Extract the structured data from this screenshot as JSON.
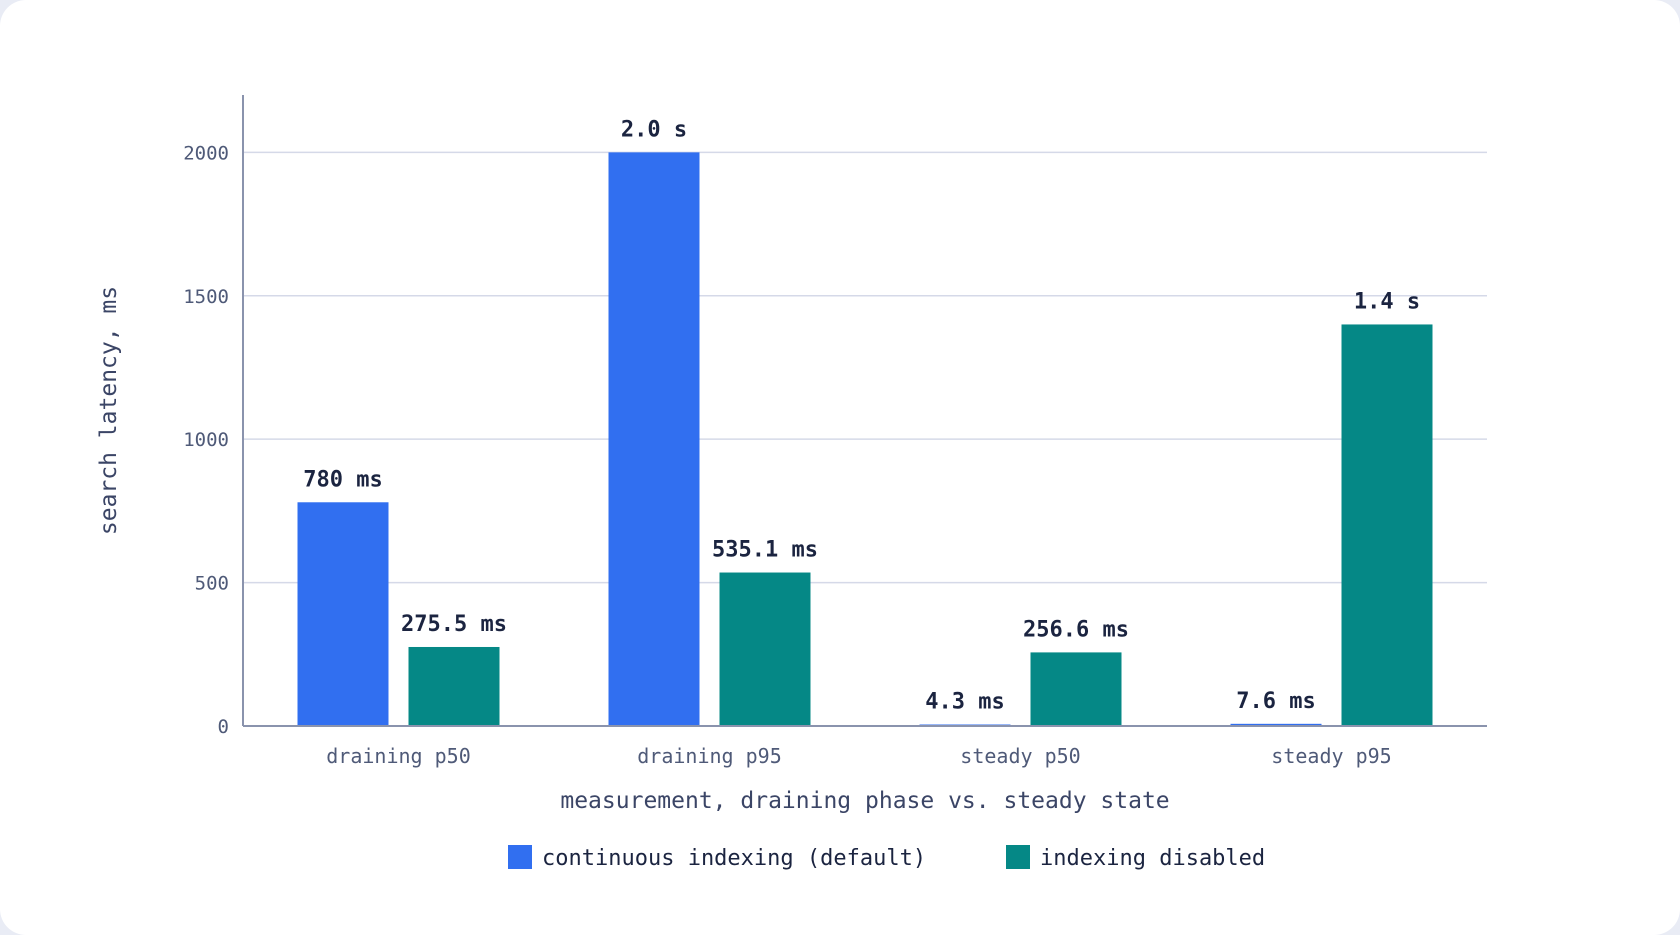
{
  "chart_data": {
    "type": "bar",
    "categories": [
      "draining p50",
      "draining p95",
      "steady p50",
      "steady p95"
    ],
    "series": [
      {
        "name": "continuous indexing (default)",
        "color": "#316ff0",
        "values": [
          780,
          2000,
          4.3,
          7.6
        ],
        "labels": [
          "780 ms",
          "2.0 s",
          "4.3 ms",
          "7.6 ms"
        ]
      },
      {
        "name": "indexing disabled",
        "color": "#058886",
        "values": [
          275.5,
          535.1,
          256.6,
          1400
        ],
        "labels": [
          "275.5 ms",
          "535.1 ms",
          "256.6 ms",
          "1.4 s"
        ]
      }
    ],
    "xlabel": "measurement, draining phase vs. steady state",
    "ylabel": "search latency, ms",
    "ylim": [
      0,
      2200
    ],
    "yticks": [
      0,
      500,
      1000,
      1500,
      2000
    ],
    "grid": true,
    "legend_position": "bottom"
  }
}
